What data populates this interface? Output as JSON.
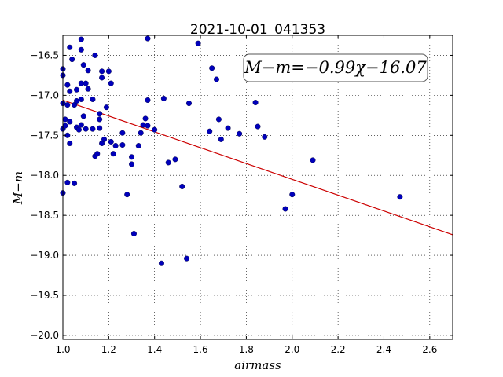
{
  "chart_data": {
    "type": "scatter",
    "title": "2021-10-01_041353",
    "xlabel": "airmass",
    "ylabel": "M−m",
    "xlim": [
      1.0,
      2.7
    ],
    "ylim": [
      -20.05,
      -16.25
    ],
    "y_inverted": true,
    "grid": true,
    "x_ticks": [
      1.0,
      1.2,
      1.4,
      1.6,
      1.8,
      2.0,
      2.2,
      2.4,
      2.6
    ],
    "x_tick_labels": [
      "1.0",
      "1.2",
      "1.4",
      "1.6",
      "1.8",
      "2.0",
      "2.2",
      "2.4",
      "2.6"
    ],
    "y_ticks": [
      -16.5,
      -17.0,
      -17.5,
      -18.0,
      -18.5,
      -19.0,
      -19.5,
      -20.0
    ],
    "y_tick_labels": [
      "−16.5",
      "−17.0",
      "−17.5",
      "−18.0",
      "−18.5",
      "−19.0",
      "−19.5",
      "−20.0"
    ],
    "annotation": "M−m=−0.99χ−16.07",
    "fit_line": {
      "slope": -0.99,
      "intercept": -16.07,
      "color": "#cc0000"
    },
    "point_color": "#0000bb",
    "points": [
      [
        1.0,
        -16.67
      ],
      [
        1.0,
        -16.75
      ],
      [
        1.0,
        -17.1
      ],
      [
        1.0,
        -17.42
      ],
      [
        1.0,
        -18.22
      ],
      [
        1.01,
        -17.3
      ],
      [
        1.01,
        -17.38
      ],
      [
        1.02,
        -17.5
      ],
      [
        1.02,
        -17.12
      ],
      [
        1.02,
        -16.87
      ],
      [
        1.02,
        -18.09
      ],
      [
        1.03,
        -17.6
      ],
      [
        1.03,
        -17.33
      ],
      [
        1.03,
        -16.95
      ],
      [
        1.03,
        -16.4
      ],
      [
        1.04,
        -16.55
      ],
      [
        1.05,
        -17.12
      ],
      [
        1.05,
        -18.1
      ],
      [
        1.06,
        -17.07
      ],
      [
        1.06,
        -16.93
      ],
      [
        1.06,
        -17.4
      ],
      [
        1.07,
        -17.43
      ],
      [
        1.08,
        -17.37
      ],
      [
        1.08,
        -16.3
      ],
      [
        1.08,
        -16.43
      ],
      [
        1.08,
        -16.85
      ],
      [
        1.08,
        -17.05
      ],
      [
        1.09,
        -17.26
      ],
      [
        1.09,
        -16.62
      ],
      [
        1.1,
        -17.42
      ],
      [
        1.1,
        -16.85
      ],
      [
        1.11,
        -16.92
      ],
      [
        1.11,
        -16.69
      ],
      [
        1.13,
        -17.42
      ],
      [
        1.13,
        -17.05
      ],
      [
        1.14,
        -16.5
      ],
      [
        1.14,
        -17.76
      ],
      [
        1.15,
        -17.73
      ],
      [
        1.16,
        -17.41
      ],
      [
        1.16,
        -17.23
      ],
      [
        1.16,
        -17.3
      ],
      [
        1.17,
        -16.7
      ],
      [
        1.17,
        -16.78
      ],
      [
        1.17,
        -17.6
      ],
      [
        1.18,
        -17.55
      ],
      [
        1.19,
        -17.15
      ],
      [
        1.2,
        -16.7
      ],
      [
        1.21,
        -16.85
      ],
      [
        1.21,
        -17.58
      ],
      [
        1.22,
        -17.73
      ],
      [
        1.23,
        -17.63
      ],
      [
        1.26,
        -17.47
      ],
      [
        1.26,
        -17.62
      ],
      [
        1.28,
        -18.24
      ],
      [
        1.3,
        -17.77
      ],
      [
        1.3,
        -17.86
      ],
      [
        1.31,
        -18.73
      ],
      [
        1.33,
        -17.63
      ],
      [
        1.34,
        -17.47
      ],
      [
        1.35,
        -17.37
      ],
      [
        1.36,
        -17.29
      ],
      [
        1.37,
        -17.06
      ],
      [
        1.37,
        -17.38
      ],
      [
        1.37,
        -16.29
      ],
      [
        1.4,
        -17.43
      ],
      [
        1.43,
        -19.1
      ],
      [
        1.44,
        -17.04
      ],
      [
        1.46,
        -17.84
      ],
      [
        1.49,
        -17.8
      ],
      [
        1.52,
        -18.14
      ],
      [
        1.54,
        -19.04
      ],
      [
        1.55,
        -17.1
      ],
      [
        1.59,
        -16.35
      ],
      [
        1.64,
        -17.45
      ],
      [
        1.65,
        -16.66
      ],
      [
        1.67,
        -16.8
      ],
      [
        1.68,
        -17.3
      ],
      [
        1.69,
        -17.55
      ],
      [
        1.72,
        -17.41
      ],
      [
        1.77,
        -17.48
      ],
      [
        1.84,
        -17.09
      ],
      [
        1.85,
        -17.39
      ],
      [
        1.88,
        -17.52
      ],
      [
        1.97,
        -18.42
      ],
      [
        2.0,
        -18.24
      ],
      [
        2.09,
        -17.81
      ],
      [
        2.47,
        -18.27
      ]
    ]
  }
}
